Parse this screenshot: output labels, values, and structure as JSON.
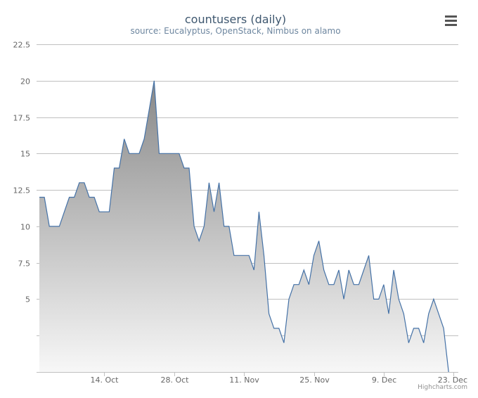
{
  "chart_data": {
    "type": "area",
    "title": "countusers (daily)",
    "subtitle": "source: Eucalyptus, OpenStack, Nimbus on alamo",
    "xlabel": "",
    "ylabel": "",
    "x_start": "2012-10-01",
    "x_tick_labels": [
      "14. Oct",
      "28. Oct",
      "11. Nov",
      "25. Nov",
      "9. Dec",
      "23. Dec"
    ],
    "y_tick_labels": [
      "22.5",
      "20",
      "17.5",
      "15",
      "12.5",
      "10",
      "7.5",
      "5"
    ],
    "ylim": [
      0,
      22.5
    ],
    "grid": true,
    "legend": "none",
    "colors": {
      "line": "#4572a7",
      "fill_top": "#888888",
      "fill_bottom": "#f7f7f7",
      "grid": "#c0c0c0"
    },
    "values": [
      12,
      12,
      10,
      10,
      10,
      11,
      12,
      12,
      13,
      13,
      12,
      12,
      11,
      11,
      11,
      14,
      14,
      16,
      15,
      15,
      15,
      16,
      18,
      20,
      15,
      15,
      15,
      15,
      15,
      14,
      14,
      10,
      9,
      10,
      13,
      11,
      13,
      10,
      10,
      8,
      8,
      8,
      8,
      7,
      11,
      8,
      4,
      3,
      3,
      2,
      5,
      6,
      6,
      7,
      6,
      8,
      9,
      7,
      6,
      6,
      7,
      5,
      7,
      6,
      6,
      7,
      8,
      5,
      5,
      6,
      4,
      7,
      5,
      4,
      2,
      3,
      3,
      2,
      4,
      5,
      4,
      3,
      0
    ]
  },
  "credits": "Highcharts.com",
  "menu_icon": "hamburger-menu-icon"
}
